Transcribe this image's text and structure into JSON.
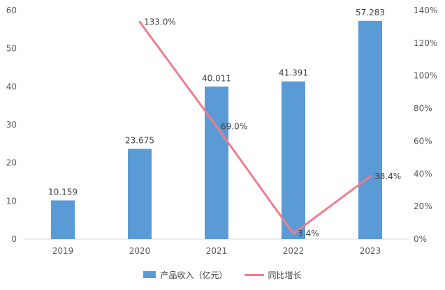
{
  "chart_data": {
    "type": "bar",
    "categories": [
      "2019",
      "2020",
      "2021",
      "2022",
      "2023"
    ],
    "series": [
      {
        "name": "产品收入（亿元）",
        "type": "bar",
        "axis": "left",
        "values": [
          10.159,
          23.675,
          40.011,
          41.391,
          57.283
        ],
        "labels": [
          "10.159",
          "23.675",
          "40.011",
          "41.391",
          "57.283"
        ],
        "color": "#5B9BD5"
      },
      {
        "name": "同比增长",
        "type": "line",
        "axis": "right",
        "values": [
          null,
          133.0,
          69.0,
          3.4,
          38.4
        ],
        "labels": [
          "",
          "133.0%",
          "69.0%",
          "3.4%",
          "38.4%"
        ],
        "color": "#F07C8C"
      }
    ],
    "ylim": [
      0,
      60
    ],
    "yticks": [
      "0",
      "10",
      "20",
      "30",
      "40",
      "50",
      "60"
    ],
    "y2lim": [
      0,
      140
    ],
    "y2ticks": [
      "0%",
      "20%",
      "40%",
      "60%",
      "80%",
      "100%",
      "120%",
      "140%"
    ],
    "grid": false,
    "legend_position": "bottom"
  }
}
